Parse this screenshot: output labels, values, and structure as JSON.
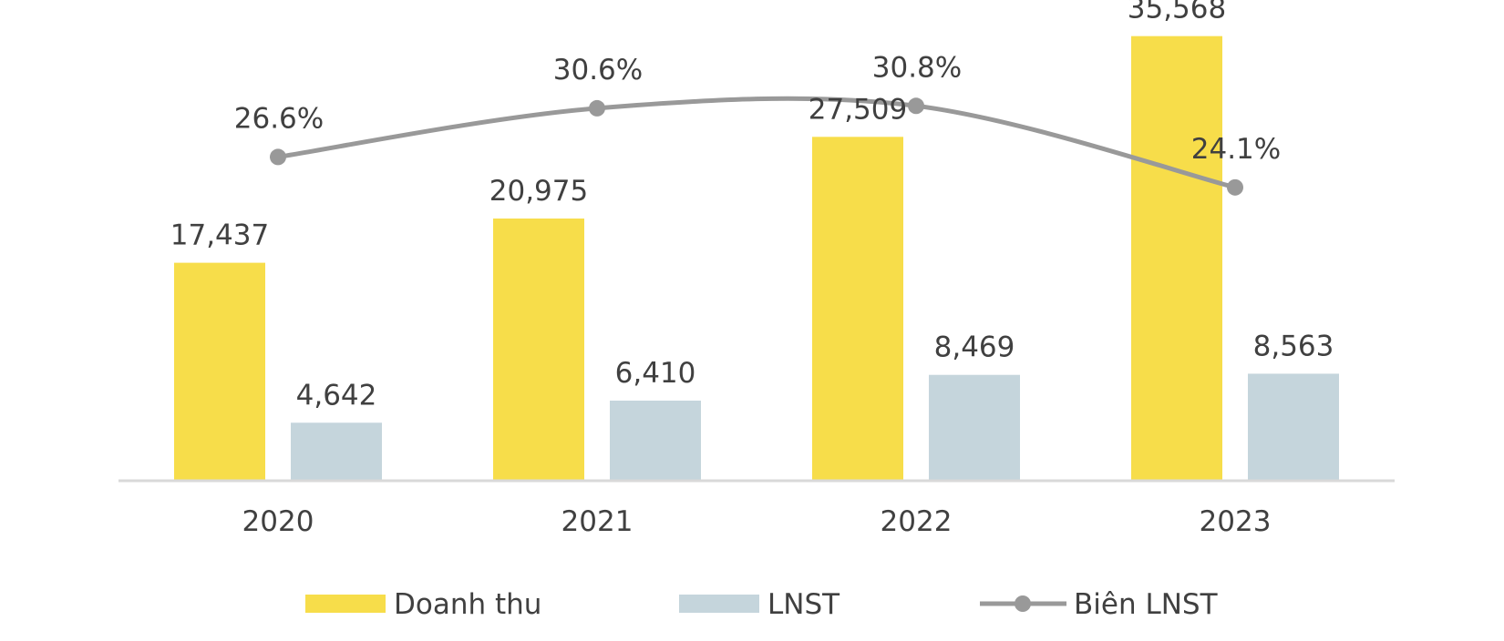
{
  "chart_data": {
    "type": "bar",
    "categories": [
      "2020",
      "2021",
      "2022",
      "2023"
    ],
    "series": [
      {
        "name": "Doanh thu",
        "kind": "bar",
        "color": "#F7DD4A",
        "values": [
          17437,
          20975,
          27509,
          35568
        ],
        "labels": [
          "17,437",
          "20,975",
          "27,509",
          "35,568"
        ]
      },
      {
        "name": "LNST",
        "kind": "bar",
        "color": "#C5D5DC",
        "values": [
          4642,
          6410,
          8469,
          8563
        ],
        "labels": [
          "4,642",
          "6,410",
          "8,469",
          "8,563"
        ]
      },
      {
        "name": "Biên LNST",
        "kind": "line",
        "color": "#999999",
        "smooth": true,
        "values": [
          26.6,
          30.6,
          30.8,
          24.1
        ],
        "labels": [
          "26.6%",
          "30.6%",
          "30.8%",
          "24.1%"
        ]
      }
    ],
    "ylim": [
      0,
      37000
    ],
    "y2lim": [
      0,
      38
    ],
    "title": "",
    "xlabel": "",
    "ylabel": "",
    "grid": false,
    "legend_position": "bottom-center",
    "axis_color": "#D9D9D9"
  }
}
